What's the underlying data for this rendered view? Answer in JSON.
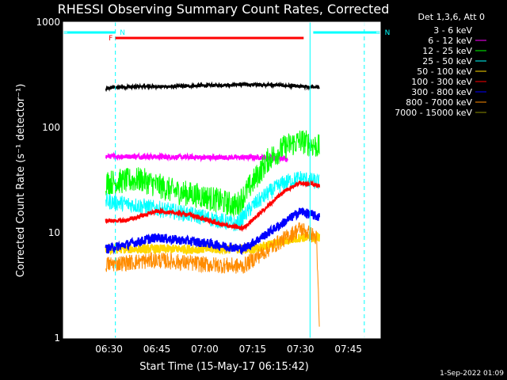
{
  "chart_data": {
    "type": "line",
    "title": "RHESSI Observing Summary Count Rates, Corrected",
    "ylabel": "Corrected Count Rate (s⁻¹ detector⁻¹)",
    "xlabel": "Start Time (15-May-17 06:15:42)",
    "yscale": "log",
    "ylim": [
      1,
      1000
    ],
    "yticks": [
      1,
      10,
      100,
      1000
    ],
    "ytick_labels": [
      "1",
      "10",
      "100",
      "1000"
    ],
    "xlim": [
      "06:15:42",
      "07:55"
    ],
    "xticks": [
      "06:30",
      "06:45",
      "07:00",
      "07:15",
      "07:30",
      "07:45"
    ],
    "legend_title": "Det 1,3,6, Att 0",
    "legend_position": "right",
    "footer": "1-Sep-2022 01:09",
    "flags": [
      {
        "label": "N",
        "color": "#00ffff",
        "start": "06:15:42",
        "end": "06:32",
        "level": "top"
      },
      {
        "label": "N",
        "color": "#00ffff",
        "start": "07:34",
        "end": "07:55",
        "level": "top"
      },
      {
        "label": "F",
        "color": "#ff0000",
        "start": "06:32",
        "end": "07:31",
        "level": "upper"
      }
    ],
    "vlines": [
      {
        "time": "06:15:42",
        "color": "#00ffff",
        "style": "solid"
      },
      {
        "time": "06:32",
        "color": "#00ffff",
        "style": "dashed"
      },
      {
        "time": "07:33",
        "color": "#00ffff",
        "style": "solid"
      },
      {
        "time": "07:50",
        "color": "#00ffff",
        "style": "dashed"
      }
    ],
    "data_span": [
      "06:29",
      "07:36"
    ],
    "series": [
      {
        "name": "3 - 6 keV",
        "color": "#000000",
        "noise": 0.03,
        "points": [
          [
            "06:29",
            230
          ],
          [
            "06:31",
            240
          ],
          [
            "06:40",
            245
          ],
          [
            "06:50",
            245
          ],
          [
            "07:00",
            250
          ],
          [
            "07:10",
            255
          ],
          [
            "07:20",
            255
          ],
          [
            "07:30",
            245
          ],
          [
            "07:36",
            240
          ]
        ]
      },
      {
        "name": "6 - 12 keV",
        "color": "#ff00ff",
        "noise": 0.05,
        "points": [
          [
            "06:29",
            53
          ],
          [
            "06:40",
            53
          ],
          [
            "07:00",
            52
          ],
          [
            "07:20",
            52
          ],
          [
            "07:26",
            50
          ]
        ]
      },
      {
        "name": "12 - 25 keV",
        "color": "#00ff00",
        "noise": 0.28,
        "points": [
          [
            "06:29",
            30
          ],
          [
            "06:40",
            32
          ],
          [
            "06:50",
            25
          ],
          [
            "07:00",
            22
          ],
          [
            "07:10",
            18
          ],
          [
            "07:15",
            30
          ],
          [
            "07:20",
            50
          ],
          [
            "07:25",
            65
          ],
          [
            "07:30",
            75
          ],
          [
            "07:36",
            65
          ]
        ]
      },
      {
        "name": "25 - 50 keV",
        "color": "#00ffff",
        "noise": 0.18,
        "points": [
          [
            "06:29",
            20
          ],
          [
            "06:40",
            18
          ],
          [
            "06:50",
            16
          ],
          [
            "07:00",
            14
          ],
          [
            "07:10",
            12
          ],
          [
            "07:15",
            18
          ],
          [
            "07:20",
            24
          ],
          [
            "07:25",
            30
          ],
          [
            "07:30",
            33
          ],
          [
            "07:36",
            30
          ]
        ]
      },
      {
        "name": "50 - 100 keV",
        "color": "#ffd700",
        "noise": 0.1,
        "points": [
          [
            "06:29",
            7
          ],
          [
            "06:45",
            7
          ],
          [
            "07:00",
            7
          ],
          [
            "07:15",
            7
          ],
          [
            "07:30",
            9
          ],
          [
            "07:36",
            9
          ]
        ]
      },
      {
        "name": "100 - 300 keV",
        "color": "#ff0000",
        "noise": 0.04,
        "points": [
          [
            "06:29",
            13
          ],
          [
            "06:35",
            13
          ],
          [
            "06:45",
            16
          ],
          [
            "06:55",
            15
          ],
          [
            "07:05",
            12
          ],
          [
            "07:12",
            11
          ],
          [
            "07:18",
            16
          ],
          [
            "07:25",
            25
          ],
          [
            "07:30",
            30
          ],
          [
            "07:36",
            28
          ]
        ]
      },
      {
        "name": "300 - 800 keV",
        "color": "#0000ff",
        "noise": 0.1,
        "points": [
          [
            "06:29",
            7
          ],
          [
            "06:45",
            9
          ],
          [
            "07:00",
            8
          ],
          [
            "07:12",
            7
          ],
          [
            "07:20",
            10
          ],
          [
            "07:30",
            16
          ],
          [
            "07:36",
            14
          ]
        ]
      },
      {
        "name": "800 - 7000 keV",
        "color": "#ff8c00",
        "noise": 0.18,
        "points": [
          [
            "06:29",
            5
          ],
          [
            "06:45",
            5.5
          ],
          [
            "07:00",
            5
          ],
          [
            "07:12",
            4.8
          ],
          [
            "07:20",
            7
          ],
          [
            "07:30",
            11
          ],
          [
            "07:35",
            9
          ],
          [
            "07:36",
            1.1
          ]
        ]
      },
      {
        "name": "7000 - 15000 keV",
        "color": "#8b8b00",
        "noise": 0,
        "points": []
      }
    ]
  }
}
